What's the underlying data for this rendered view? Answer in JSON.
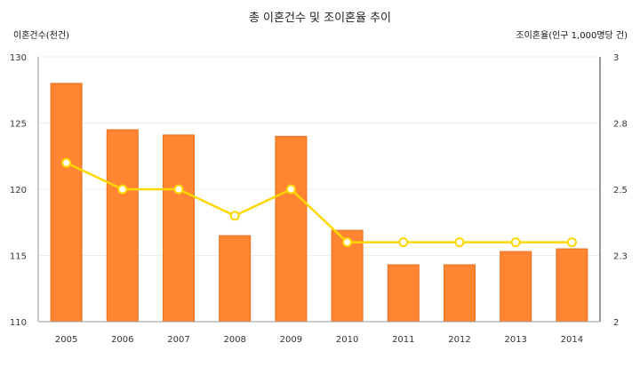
{
  "chart_data": {
    "type": "bar",
    "title": "총 이혼건수 및 조이혼율 추이",
    "categories": [
      "2005",
      "2006",
      "2007",
      "2008",
      "2009",
      "2010",
      "2011",
      "2012",
      "2013",
      "2014"
    ],
    "y_left": {
      "label": "이혼건수(천건)",
      "ylim": [
        110,
        130
      ],
      "ticks": [
        "110",
        "115",
        "120",
        "125",
        "130"
      ]
    },
    "y_right": {
      "label": "조이혼율(인구 1,000명당 건)",
      "ylim": [
        2,
        3
      ],
      "ticks": [
        "2",
        "2.3",
        "2.5",
        "2.8",
        "3"
      ]
    },
    "series": [
      {
        "type": "bar",
        "axis": "left",
        "color": "#ff8533",
        "values": [
          128.0,
          124.5,
          124.1,
          116.5,
          124.0,
          116.9,
          114.3,
          114.3,
          115.3,
          115.5
        ]
      },
      {
        "type": "line",
        "axis": "right",
        "color": "#ffd700",
        "values": [
          2.6,
          2.5,
          2.5,
          2.4,
          2.5,
          2.3,
          2.3,
          2.3,
          2.3,
          2.3
        ]
      }
    ],
    "grid": true
  }
}
